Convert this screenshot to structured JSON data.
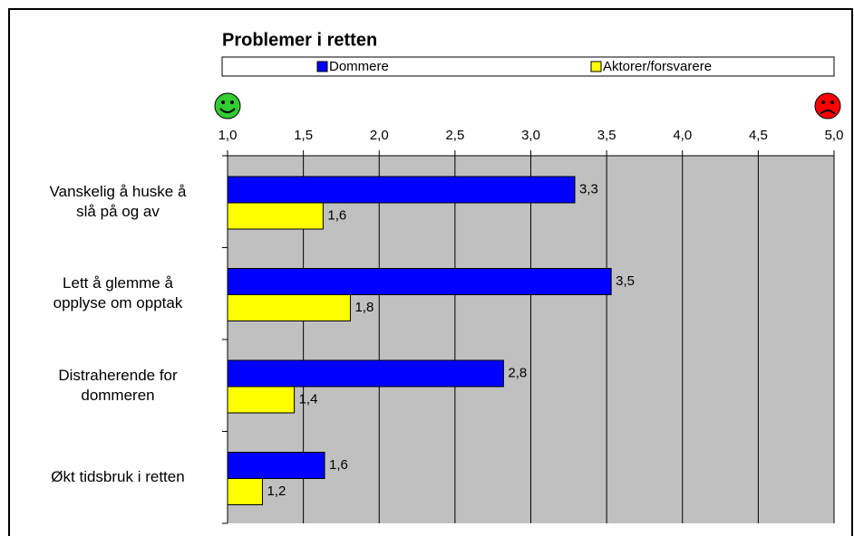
{
  "chart_data": {
    "type": "bar",
    "orientation": "horizontal",
    "title": "Problemer i retten",
    "categories": [
      "Vanskelig å huske å\nslå på og av",
      "Lett å glemme å\nopplyse om opptak",
      "Distraherende for\ndommeren",
      "Økt tidsbruk i retten"
    ],
    "series": [
      {
        "name": "Dommere",
        "color": "#0000ff",
        "values": [
          3.29,
          3.53,
          2.82,
          1.64
        ],
        "value_labels": [
          "3,3",
          "3,5",
          "2,8",
          "1,6"
        ]
      },
      {
        "name": "Aktorer/forsvarere",
        "color": "#ffff00",
        "values": [
          1.63,
          1.81,
          1.44,
          1.23
        ],
        "value_labels": [
          "1,6",
          "1,8",
          "1,4",
          "1,2"
        ]
      }
    ],
    "xlim": [
      1,
      5
    ],
    "xticks": [
      {
        "value": 1,
        "label": "1,0"
      },
      {
        "value": 1.5,
        "label": "1,5"
      },
      {
        "value": 2,
        "label": "2,0"
      },
      {
        "value": 2.5,
        "label": "2,5"
      },
      {
        "value": 3,
        "label": "3,0"
      },
      {
        "value": 3.5,
        "label": "3,5"
      },
      {
        "value": 4,
        "label": "4,0"
      },
      {
        "value": 4.5,
        "label": "4,5"
      },
      {
        "value": 5,
        "label": "5,0"
      }
    ],
    "grid": true,
    "legend": "top",
    "plot_background": "#c0c0c0"
  }
}
